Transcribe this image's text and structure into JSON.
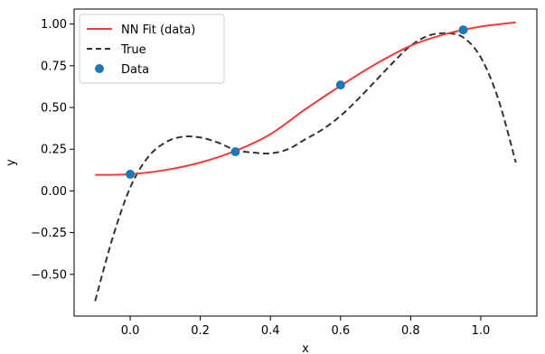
{
  "chart_data": {
    "type": "line",
    "title": "",
    "xlabel": "x",
    "ylabel": "y",
    "xlim": [
      -0.16,
      1.16
    ],
    "ylim": [
      -0.75,
      1.09
    ],
    "xticks": [
      0.0,
      0.2,
      0.4,
      0.6,
      0.8,
      1.0
    ],
    "xtick_labels": [
      "0.0",
      "0.2",
      "0.4",
      "0.6",
      "0.8",
      "1.0"
    ],
    "yticks": [
      1.0,
      0.75,
      0.5,
      0.25,
      0.0,
      -0.25,
      -0.5
    ],
    "ytick_labels": [
      "1.00",
      "0.75",
      "0.50",
      "0.25",
      "0.00",
      "−0.25",
      "−0.50"
    ],
    "grid": false,
    "legend_position": "top-left",
    "series": [
      {
        "name": "NN Fit (data)",
        "kind": "line",
        "style": "solid",
        "color": "#f03c3c",
        "x": [
          -0.1,
          0.0,
          0.1,
          0.2,
          0.3,
          0.4,
          0.5,
          0.6,
          0.7,
          0.8,
          0.9,
          1.0,
          1.1
        ],
        "y": [
          0.096,
          0.1,
          0.125,
          0.17,
          0.24,
          0.34,
          0.49,
          0.63,
          0.76,
          0.87,
          0.94,
          0.985,
          1.01
        ]
      },
      {
        "name": "True",
        "kind": "line",
        "style": "dashed",
        "color": "#333333",
        "x": [
          -0.1,
          -0.05,
          0.0,
          0.05,
          0.1,
          0.15,
          0.2,
          0.25,
          0.3,
          0.35,
          0.4,
          0.45,
          0.5,
          0.55,
          0.6,
          0.65,
          0.7,
          0.75,
          0.8,
          0.85,
          0.9,
          0.95,
          1.0,
          1.05,
          1.1
        ],
        "y": [
          -0.66,
          -0.28,
          0.02,
          0.2,
          0.29,
          0.325,
          0.32,
          0.29,
          0.245,
          0.23,
          0.225,
          0.25,
          0.31,
          0.37,
          0.45,
          0.55,
          0.66,
          0.77,
          0.87,
          0.93,
          0.945,
          0.92,
          0.8,
          0.55,
          0.17
        ]
      },
      {
        "name": "Data",
        "kind": "scatter",
        "color": "#1f77b4",
        "x": [
          0.0,
          0.3,
          0.6,
          0.95
        ],
        "y": [
          0.1,
          0.235,
          0.635,
          0.965
        ]
      }
    ]
  }
}
